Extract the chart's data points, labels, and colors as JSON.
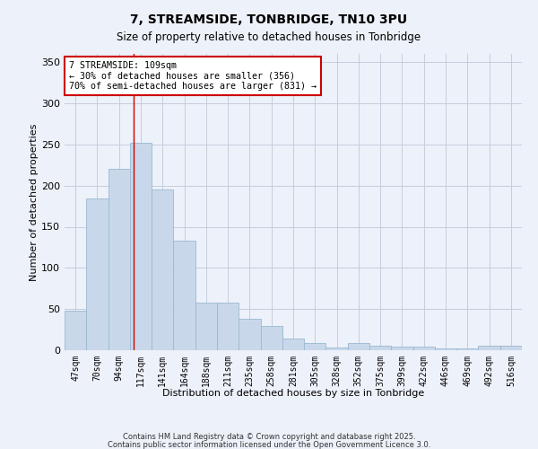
{
  "title": "7, STREAMSIDE, TONBRIDGE, TN10 3PU",
  "subtitle": "Size of property relative to detached houses in Tonbridge",
  "xlabel": "Distribution of detached houses by size in Tonbridge",
  "ylabel": "Number of detached properties",
  "bar_color": "#c8d8ea",
  "bar_edge_color": "#9ab8d0",
  "background_color": "#edf1f9",
  "grid_color": "#c5cede",
  "categories": [
    "47sqm",
    "70sqm",
    "94sqm",
    "117sqm",
    "141sqm",
    "164sqm",
    "188sqm",
    "211sqm",
    "235sqm",
    "258sqm",
    "281sqm",
    "305sqm",
    "328sqm",
    "352sqm",
    "375sqm",
    "399sqm",
    "422sqm",
    "446sqm",
    "469sqm",
    "492sqm",
    "516sqm"
  ],
  "values": [
    48,
    184,
    220,
    252,
    195,
    133,
    58,
    58,
    38,
    30,
    14,
    9,
    3,
    9,
    5,
    4,
    4,
    2,
    2,
    6,
    5
  ],
  "annotation_text_line1": "7 STREAMSIDE: 109sqm",
  "annotation_text_line2": "← 30% of detached houses are smaller (356)",
  "annotation_text_line3": "70% of semi-detached houses are larger (831) →",
  "annotation_box_color": "#ffffff",
  "annotation_border_color": "#cc0000",
  "vline_color": "#cc0000",
  "footnote1": "Contains HM Land Registry data © Crown copyright and database right 2025.",
  "footnote2": "Contains public sector information licensed under the Open Government Licence 3.0.",
  "ylim": [
    0,
    360
  ],
  "yticks": [
    0,
    50,
    100,
    150,
    200,
    250,
    300,
    350
  ]
}
